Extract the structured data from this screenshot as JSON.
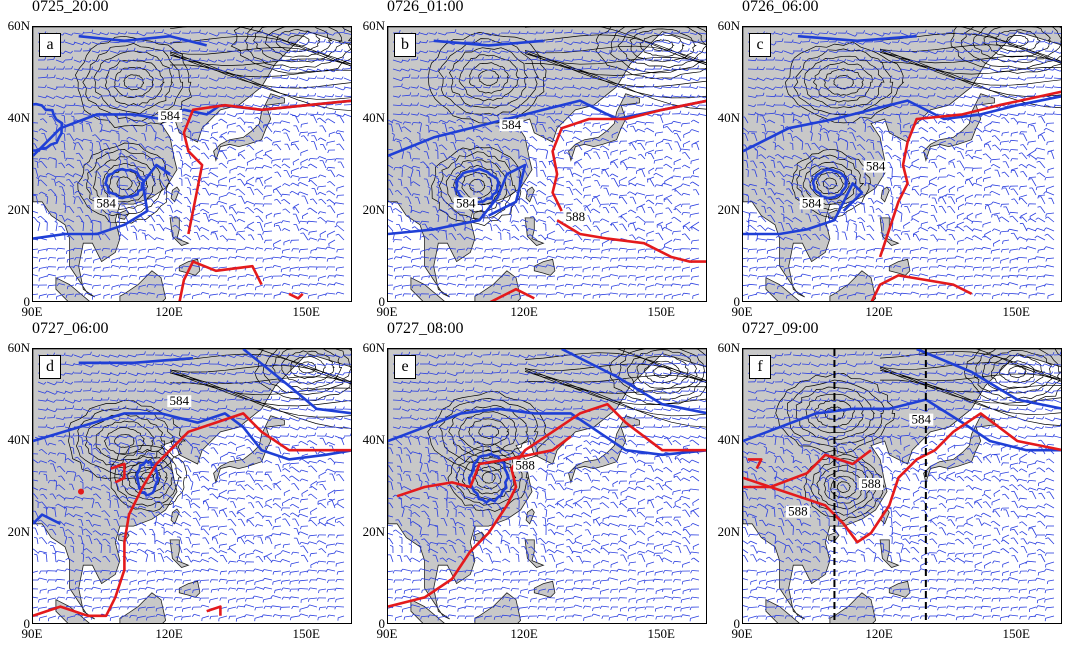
{
  "panels": [
    {
      "title": "0725_20:00",
      "label": "a",
      "contour_labels": [
        "584",
        "584"
      ],
      "dashed_meridians_lon": []
    },
    {
      "title": "0726_01:00",
      "label": "b",
      "contour_labels": [
        "584",
        "584",
        "588"
      ],
      "dashed_meridians_lon": []
    },
    {
      "title": "0726_06:00",
      "label": "c",
      "contour_labels": [
        "584",
        "584"
      ],
      "dashed_meridians_lon": []
    },
    {
      "title": "0727_06:00",
      "label": "d",
      "contour_labels": [
        "584"
      ],
      "dashed_meridians_lon": []
    },
    {
      "title": "0727_08:00",
      "label": "e",
      "contour_labels": [
        "588"
      ],
      "dashed_meridians_lon": []
    },
    {
      "title": "0727_09:00",
      "label": "f",
      "contour_labels": [
        "584",
        "588",
        "588"
      ],
      "dashed_meridians_lon": [
        110,
        130
      ]
    }
  ],
  "axes": {
    "y_ticks": [
      "60N",
      "40N",
      "20N",
      "0"
    ],
    "x_ticks": [
      "90E",
      "120E",
      "150E"
    ],
    "lon_range": [
      90,
      160
    ],
    "lat_range": [
      0,
      60
    ]
  },
  "colors": {
    "land": "#c8c8c8",
    "ocean": "#ffffff",
    "geopotential_contour": "#000000",
    "contour_584": "#1f3fd6",
    "contour_588": "#e41a1c",
    "wind_barbs": "#2b3fe0"
  }
}
